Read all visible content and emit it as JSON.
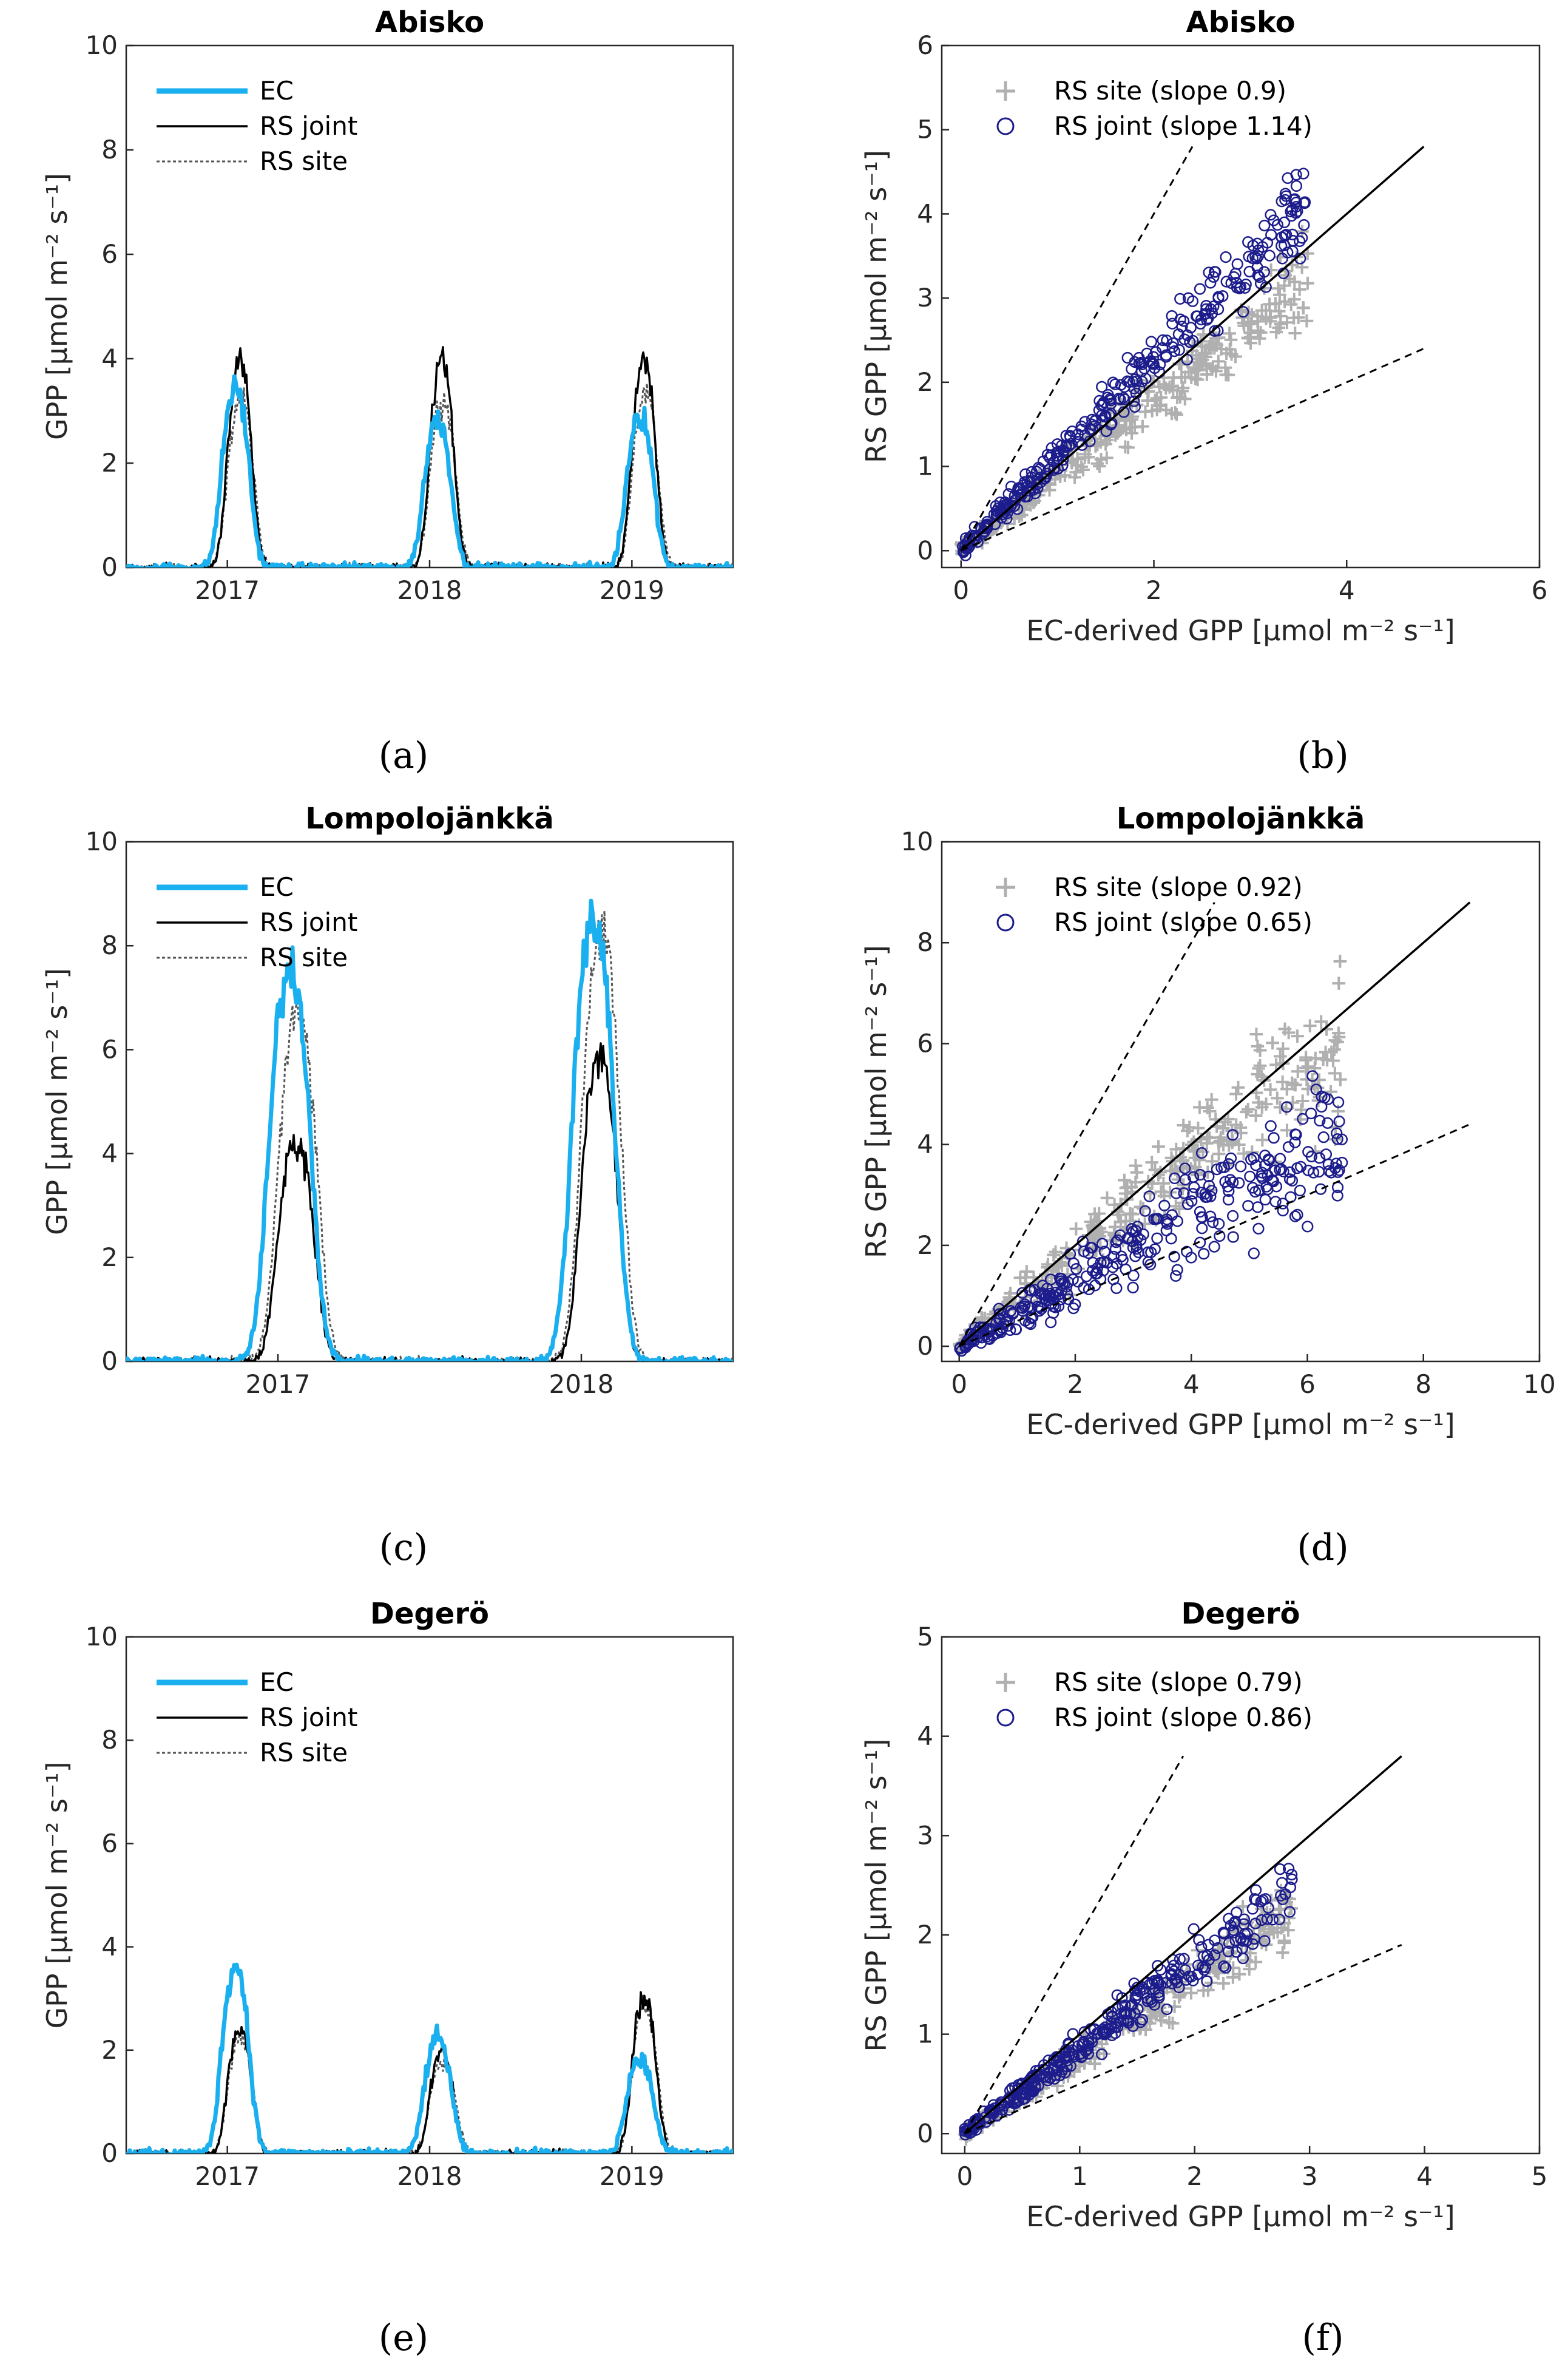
{
  "chart_data": [
    {
      "id": "a",
      "type": "line",
      "panel_label": "(a)",
      "title": "Abisko",
      "xlabel": "",
      "ylabel": "GPP [μmol m⁻² s⁻¹]",
      "xlim": [
        2016.5,
        2019.5
      ],
      "ylim": [
        0,
        10
      ],
      "xticks": [
        "2017",
        "2018",
        "2019"
      ],
      "yticks": [
        "0",
        "2",
        "4",
        "6",
        "8",
        "10"
      ],
      "legend": [
        "EC",
        "RS joint",
        "RS site"
      ],
      "peaks": [
        {
          "year": 2017,
          "EC": 3.4,
          "RS joint": 3.9,
          "RS site": 3.2
        },
        {
          "year": 2018,
          "EC": 2.8,
          "RS joint": 3.9,
          "RS site": 3.2
        },
        {
          "year": 2019,
          "EC": 2.9,
          "RS joint": 3.9,
          "RS site": 3.3
        }
      ]
    },
    {
      "id": "b",
      "type": "scatter",
      "panel_label": "(b)",
      "title": "Abisko",
      "xlabel": "EC-derived GPP [μmol m⁻² s⁻¹]",
      "ylabel": "RS GPP [μmol m⁻² s⁻¹]",
      "xlim": [
        -0.2,
        6
      ],
      "ylim": [
        -0.2,
        6
      ],
      "xticks": [
        "0",
        "2",
        "4",
        "6"
      ],
      "yticks": [
        "0",
        "1",
        "2",
        "3",
        "4",
        "5",
        "6"
      ],
      "series": [
        {
          "name": "RS site (slope 0.9)",
          "slope": 0.9,
          "marker": "+"
        },
        {
          "name": "RS joint (slope 1.14)",
          "slope": 1.14,
          "marker": "o"
        }
      ],
      "fit_line_end": 4.8
    },
    {
      "id": "c",
      "type": "line",
      "panel_label": "(c)",
      "title": "Lompolojänkkä",
      "xlabel": "",
      "ylabel": "GPP [μmol m⁻² s⁻¹]",
      "xlim": [
        2016.5,
        2018.5
      ],
      "ylim": [
        0,
        10
      ],
      "xticks": [
        "2017",
        "2018"
      ],
      "yticks": [
        "0",
        "2",
        "4",
        "6",
        "8",
        "10"
      ],
      "legend": [
        "EC",
        "RS joint",
        "RS site"
      ],
      "peaks": [
        {
          "year": 2017,
          "EC": 7.5,
          "RS joint": 4.2,
          "RS site": 6.6
        },
        {
          "year": 2018,
          "EC": 8.5,
          "RS joint": 5.8,
          "RS site": 8.2
        }
      ]
    },
    {
      "id": "d",
      "type": "scatter",
      "panel_label": "(d)",
      "title": "Lompolojänkkä",
      "xlabel": "EC-derived GPP [μmol m⁻² s⁻¹]",
      "ylabel": "RS GPP [μmol m⁻² s⁻¹]",
      "xlim": [
        -0.3,
        10
      ],
      "ylim": [
        -0.3,
        10
      ],
      "xticks": [
        "0",
        "2",
        "4",
        "6",
        "8",
        "10"
      ],
      "yticks": [
        "0",
        "2",
        "4",
        "6",
        "8",
        "10"
      ],
      "series": [
        {
          "name": "RS site (slope 0.92)",
          "slope": 0.92,
          "marker": "+"
        },
        {
          "name": "RS joint (slope 0.65)",
          "slope": 0.65,
          "marker": "o"
        }
      ],
      "fit_line_end": 8.8
    },
    {
      "id": "e",
      "type": "line",
      "panel_label": "(e)",
      "title": "Degerö",
      "xlabel": "",
      "ylabel": "GPP [μmol m⁻² s⁻¹]",
      "xlim": [
        2016.5,
        2019.5
      ],
      "ylim": [
        0,
        10
      ],
      "xticks": [
        "2017",
        "2018",
        "2019"
      ],
      "yticks": [
        "0",
        "2",
        "4",
        "6",
        "8",
        "10"
      ],
      "legend": [
        "EC",
        "RS joint",
        "RS site"
      ],
      "peaks": [
        {
          "year": 2017,
          "EC": 3.6,
          "RS joint": 2.4,
          "RS site": 2.2
        },
        {
          "year": 2018,
          "EC": 2.2,
          "RS joint": 1.9,
          "RS site": 1.8
        },
        {
          "year": 2019,
          "EC": 1.8,
          "RS joint": 3.0,
          "RS site": 2.8
        }
      ]
    },
    {
      "id": "f",
      "type": "scatter",
      "panel_label": "(f)",
      "title": "Degerö",
      "xlabel": "EC-derived GPP [μmol m⁻² s⁻¹]",
      "ylabel": "RS GPP [μmol m⁻² s⁻¹]",
      "xlim": [
        -0.2,
        5
      ],
      "ylim": [
        -0.2,
        5
      ],
      "xticks": [
        "0",
        "1",
        "2",
        "3",
        "4",
        "5"
      ],
      "yticks": [
        "0",
        "1",
        "2",
        "3",
        "4",
        "5"
      ],
      "series": [
        {
          "name": "RS site (slope 0.79)",
          "slope": 0.79,
          "marker": "+"
        },
        {
          "name": "RS joint (slope 0.86)",
          "slope": 0.86,
          "marker": "o"
        }
      ],
      "fit_line_end": 3.8
    }
  ],
  "colors": {
    "ec": "#1ab0f0",
    "rs_joint": "#000000",
    "rs_site": "#555555",
    "scatter_site": "#b0b0b0",
    "scatter_joint": "#1c1c8c"
  }
}
